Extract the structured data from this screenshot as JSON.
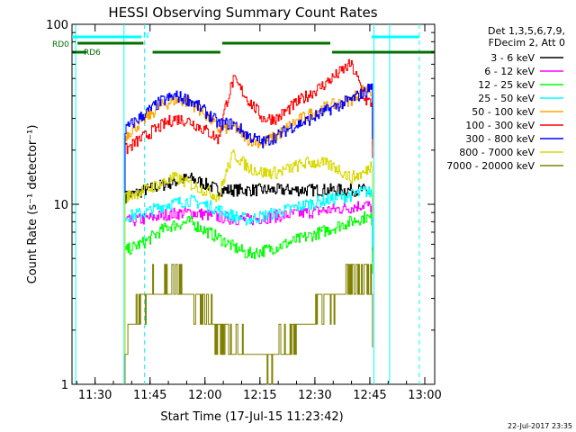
{
  "chart_data": {
    "type": "line",
    "title": "HESSI Observing Summary Count Rates",
    "xlabel": "Start Time (17-Jul-15 11:23:42)",
    "ylabel": "Count Rate (s⁻¹ detector⁻¹)",
    "x_unit": "minutes after 11:23:42",
    "xlim": [
      0,
      99
    ],
    "ylim": [
      1,
      100
    ],
    "yscale": "log",
    "xticks": [
      "11:30",
      "11:45",
      "12:00",
      "12:15",
      "12:30",
      "12:45",
      "13:00"
    ],
    "xtick_minutes": [
      6.3,
      21.3,
      36.3,
      51.3,
      66.3,
      81.3,
      96.3
    ],
    "yticks": [
      "1",
      "10",
      "100"
    ],
    "legend": {
      "position": "top-right",
      "header": [
        "Det 1,3,5,6,7,9,",
        "FDecim 2, Att 0"
      ]
    },
    "footer_date": "22-Jul-2017 23:35",
    "flags": [
      {
        "name": "RD0",
        "color": "#00a0a0"
      },
      {
        "name": "RD6",
        "color": "#007000"
      },
      {
        "name": "N",
        "color": "#00e0e0"
      }
    ],
    "series": [
      {
        "name": "3 - 6 keV",
        "color": "#000000",
        "t": [
          14.5,
          20,
          26,
          32,
          36,
          40,
          44,
          48,
          52,
          56,
          60,
          64,
          68,
          72,
          76,
          80,
          82
        ],
        "values": [
          11,
          12,
          13,
          14,
          13,
          12,
          12,
          12,
          12,
          12,
          12,
          12,
          12,
          12,
          12,
          12,
          11
        ]
      },
      {
        "name": "6 - 12 keV",
        "color": "#ff00ff",
        "t": [
          14.5,
          20,
          26,
          32,
          36,
          40,
          44,
          48,
          52,
          56,
          60,
          64,
          68,
          72,
          76,
          80,
          82
        ],
        "values": [
          8,
          8.3,
          8.8,
          9,
          8.8,
          8.5,
          8.3,
          8.2,
          8.4,
          8.6,
          8.8,
          9,
          9.2,
          9.4,
          9.6,
          10,
          9.5
        ]
      },
      {
        "name": "12 - 25 keV",
        "color": "#00ff00",
        "t": [
          14.5,
          20,
          26,
          32,
          36,
          40,
          44,
          48,
          52,
          56,
          60,
          64,
          68,
          72,
          76,
          80,
          82
        ],
        "values": [
          5.5,
          6.2,
          7.5,
          8,
          7.2,
          6.5,
          5.8,
          5.3,
          5.5,
          5.8,
          6.2,
          6.6,
          7,
          7.5,
          8,
          8.5,
          8.2
        ]
      },
      {
        "name": "25 - 50 keV",
        "color": "#00ffff",
        "t": [
          14.5,
          20,
          26,
          32,
          36,
          40,
          44,
          48,
          52,
          56,
          60,
          64,
          68,
          72,
          76,
          80,
          82
        ],
        "values": [
          8.5,
          9,
          10,
          10.5,
          10,
          9.3,
          8.6,
          8.2,
          8.6,
          9,
          9.5,
          10,
          10.4,
          10.8,
          11.2,
          11.8,
          11.5
        ]
      },
      {
        "name": "50 - 100 keV",
        "color": "#ffa500",
        "t": [
          14.5,
          20,
          24,
          28,
          32,
          36,
          40,
          44,
          48,
          52,
          56,
          60,
          64,
          68,
          72,
          76,
          80,
          82
        ],
        "values": [
          24,
          30,
          35,
          38,
          37,
          32,
          26,
          27,
          23,
          22,
          24,
          28,
          31,
          34,
          36,
          38,
          44,
          42
        ]
      },
      {
        "name": "100 - 300 keV",
        "color": "#ff0000",
        "t": [
          14.5,
          20,
          24,
          28,
          32,
          36,
          40,
          44,
          48,
          52,
          56,
          60,
          64,
          68,
          72,
          76,
          80,
          82
        ],
        "values": [
          20,
          24,
          27,
          30,
          29,
          26,
          23,
          49,
          38,
          30,
          30,
          35,
          40,
          45,
          52,
          60,
          38,
          36
        ]
      },
      {
        "name": "300 - 800 keV",
        "color": "#0000ff",
        "t": [
          14.5,
          20,
          24,
          28,
          32,
          36,
          40,
          44,
          48,
          52,
          56,
          60,
          64,
          68,
          72,
          76,
          80,
          82
        ],
        "values": [
          26,
          32,
          37,
          40,
          38,
          33,
          28,
          28,
          24,
          22,
          24,
          27,
          29,
          32,
          35,
          38,
          42,
          46
        ]
      },
      {
        "name": "800 - 7000 keV",
        "color": "#d8d800",
        "t": [
          14.5,
          20,
          24,
          28,
          32,
          36,
          40,
          44,
          48,
          52,
          56,
          60,
          64,
          68,
          72,
          76,
          80,
          82
        ],
        "values": [
          11,
          12,
          13,
          14,
          13,
          12,
          11,
          19,
          16,
          15,
          15,
          16,
          17,
          17,
          16,
          14,
          15,
          17
        ]
      },
      {
        "name": "7000 - 20000 keV",
        "color": "#808000",
        "t": [
          14.5,
          17,
          20,
          24,
          28,
          32,
          36,
          40,
          44,
          48,
          52,
          56,
          60,
          64,
          68,
          72,
          76,
          80,
          82
        ],
        "values": [
          1.8,
          2.2,
          2.8,
          3.5,
          3.8,
          3.2,
          2.6,
          2.0,
          1.7,
          1.5,
          1.4,
          1.5,
          1.8,
          2.2,
          2.6,
          3.0,
          3.4,
          3.8,
          3.2
        ]
      }
    ]
  }
}
